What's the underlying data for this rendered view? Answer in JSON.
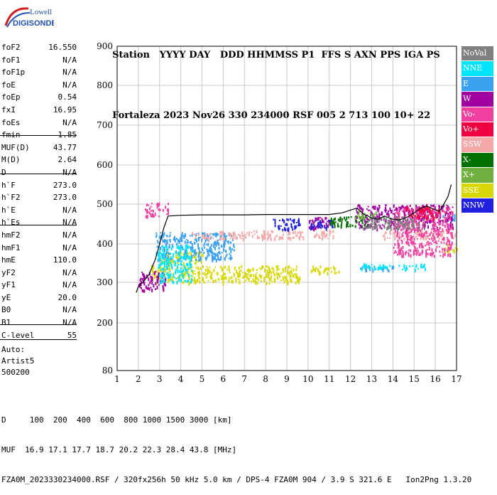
{
  "logo": {
    "line1": "Lowell",
    "line2": "DIGISONDE"
  },
  "header": {
    "labels": [
      "Station",
      "YYYY",
      "DAY",
      "DDD",
      "HHMMSS",
      "P1",
      "FFS",
      "S",
      "AXN",
      "PPS",
      "IGA",
      "PS"
    ],
    "values": [
      "Fortaleza",
      "2023",
      "Nov26",
      "330",
      "234000",
      "RSF",
      "005",
      "2",
      "713",
      "100",
      "10+",
      "22"
    ]
  },
  "params": [
    {
      "name": "foF2",
      "value": "16.550"
    },
    {
      "name": "foF1",
      "value": "N/A"
    },
    {
      "name": "foF1p",
      "value": "N/A"
    },
    {
      "name": "foE",
      "value": "N/A"
    },
    {
      "name": "foEp",
      "value": "0.54"
    },
    {
      "name": "fxI",
      "value": "16.95"
    },
    {
      "name": "foEs",
      "value": "N/A"
    },
    {
      "name": "fmin",
      "value": "1.85"
    },
    {
      "name": "MUF(D)",
      "value": "43.77"
    },
    {
      "name": "M(D)",
      "value": "2.64"
    },
    {
      "name": "D",
      "value": "N/A"
    },
    {
      "name": "h`F",
      "value": "273.0"
    },
    {
      "name": "h`F2",
      "value": "273.0"
    },
    {
      "name": "h`E",
      "value": "N/A"
    },
    {
      "name": "h`Es",
      "value": "N/A"
    },
    {
      "name": "hmF2",
      "value": "N/A"
    },
    {
      "name": "hmF1",
      "value": "N/A"
    },
    {
      "name": "hmE",
      "value": "110.0"
    },
    {
      "name": "yF2",
      "value": "N/A"
    },
    {
      "name": "yF1",
      "value": "N/A"
    },
    {
      "name": "yE",
      "value": "20.0"
    },
    {
      "name": "B0",
      "value": "N/A"
    },
    {
      "name": "B1",
      "value": "N/A"
    },
    {
      "name": "C-level",
      "value": "55"
    }
  ],
  "scaling": {
    "line1": "Auto:",
    "line2": "Artist5",
    "line3": "500200"
  },
  "legend": [
    {
      "label": "NoVal",
      "color": "#808080"
    },
    {
      "label": "NNE",
      "color": "#00e5ff"
    },
    {
      "label": "E",
      "color": "#3aa0f0"
    },
    {
      "label": "W",
      "color": "#a000a0"
    },
    {
      "label": "Vo-",
      "color": "#f040a0"
    },
    {
      "label": "Vo+",
      "color": "#f00040"
    },
    {
      "label": "SSW",
      "color": "#f4a8a8"
    },
    {
      "label": "X-",
      "color": "#007000"
    },
    {
      "label": "X+",
      "color": "#70b040"
    },
    {
      "label": "SSE",
      "color": "#d8d800"
    },
    {
      "label": "NNW",
      "color": "#2020e0"
    }
  ],
  "footer": {
    "d_label": "D",
    "d_values": "100  200  400  600  800 1000 1500 3000 [km]",
    "muf_label": "MUF",
    "muf_values": "16.9 17.1 17.7 18.7 20.2 22.3 28.4 43.8 [MHz]",
    "info": "FZA0M_2023330234000.RSF / 320fx256h 50 kHz 5.0 km / DPS-4 FZA0M 904 / 3.9 S 321.6 E   Ion2Png 1.3.20"
  },
  "chart_data": {
    "type": "scatter",
    "x_ticks": [
      1,
      2,
      3,
      4,
      5,
      6,
      7,
      8,
      9,
      10,
      11,
      12,
      13,
      14,
      15,
      16,
      17
    ],
    "y_ticks": [
      80,
      200,
      300,
      400,
      500,
      600,
      700,
      800,
      900
    ],
    "xlim": [
      1,
      17
    ],
    "ylim": [
      80,
      900
    ],
    "grid": true,
    "profile_line": {
      "color": "#000000",
      "points": [
        [
          1.9,
          275
        ],
        [
          2.0,
          290
        ],
        [
          2.2,
          300
        ],
        [
          2.5,
          320
        ],
        [
          2.8,
          360
        ],
        [
          3.0,
          400
        ],
        [
          3.2,
          440
        ],
        [
          3.4,
          470
        ],
        [
          4.0,
          472
        ],
        [
          5.0,
          473
        ],
        [
          6.0,
          473
        ],
        [
          7.0,
          473
        ],
        [
          8.0,
          474
        ],
        [
          9.0,
          474
        ],
        [
          10.0,
          474
        ],
        [
          10.5,
          474
        ],
        [
          11.0,
          474
        ],
        [
          11.6,
          478
        ],
        [
          12.0,
          485
        ],
        [
          12.3,
          490
        ],
        [
          12.6,
          476
        ],
        [
          13.0,
          465
        ],
        [
          13.3,
          462
        ],
        [
          13.6,
          470
        ],
        [
          14.0,
          462
        ],
        [
          14.3,
          460
        ],
        [
          14.7,
          468
        ],
        [
          15.0,
          478
        ],
        [
          15.3,
          490
        ],
        [
          15.6,
          495
        ],
        [
          15.9,
          488
        ],
        [
          16.2,
          482
        ],
        [
          16.4,
          500
        ],
        [
          16.6,
          520
        ],
        [
          16.75,
          550
        ]
      ]
    },
    "echo_clusters": [
      {
        "color": "#d8d800",
        "x": [
          2.6,
          9.6
        ],
        "y": [
          300,
          345
        ]
      },
      {
        "color": "#d8d800",
        "x": [
          10.1,
          11.5
        ],
        "y": [
          325,
          345
        ]
      },
      {
        "color": "#d8d800",
        "x": [
          3.0,
          5.0
        ],
        "y": [
          350,
          380
        ]
      },
      {
        "color": "#d8d800",
        "x": [
          16.4,
          17.0
        ],
        "y": [
          380,
          400
        ]
      },
      {
        "color": "#3aa0f0",
        "x": [
          2.8,
          6.5
        ],
        "y": [
          360,
          430
        ]
      },
      {
        "color": "#3aa0f0",
        "x": [
          12.3,
          14.0
        ],
        "y": [
          333,
          345
        ]
      },
      {
        "color": "#3aa0f0",
        "x": [
          16.3,
          16.9
        ],
        "y": [
          460,
          480
        ]
      },
      {
        "color": "#f4a8a8",
        "x": [
          4.5,
          9.8
        ],
        "y": [
          415,
          435
        ]
      },
      {
        "color": "#f4a8a8",
        "x": [
          10.2,
          11.3
        ],
        "y": [
          415,
          435
        ]
      },
      {
        "color": "#f4a8a8",
        "x": [
          13.5,
          17.0
        ],
        "y": [
          415,
          435
        ]
      },
      {
        "color": "#a000a0",
        "x": [
          2.0,
          3.3
        ],
        "y": [
          280,
          330
        ]
      },
      {
        "color": "#a000a0",
        "x": [
          12.2,
          16.8
        ],
        "y": [
          440,
          500
        ]
      },
      {
        "color": "#a000a0",
        "x": [
          10.0,
          11.0
        ],
        "y": [
          440,
          470
        ]
      },
      {
        "color": "#2020e0",
        "x": [
          8.3,
          9.6
        ],
        "y": [
          435,
          465
        ]
      },
      {
        "color": "#2020e0",
        "x": [
          10.1,
          11.2
        ],
        "y": [
          440,
          462
        ]
      },
      {
        "color": "#00e5ff",
        "x": [
          2.9,
          4.5
        ],
        "y": [
          300,
          400
        ]
      },
      {
        "color": "#00e5ff",
        "x": [
          12.5,
          15.5
        ],
        "y": [
          335,
          350
        ]
      },
      {
        "color": "#f040a0",
        "x": [
          2.3,
          3.4
        ],
        "y": [
          470,
          505
        ]
      },
      {
        "color": "#f040a0",
        "x": [
          14.0,
          16.8
        ],
        "y": [
          370,
          495
        ]
      },
      {
        "color": "#f00040",
        "x": [
          14.6,
          16.2
        ],
        "y": [
          465,
          495
        ]
      },
      {
        "color": "#007000",
        "x": [
          11.0,
          12.8
        ],
        "y": [
          445,
          470
        ]
      },
      {
        "color": "#70b040",
        "x": [
          12.2,
          13.2
        ],
        "y": [
          465,
          485
        ]
      },
      {
        "color": "#808080",
        "x": [
          12.5,
          15.5
        ],
        "y": [
          440,
          470
        ]
      }
    ]
  }
}
